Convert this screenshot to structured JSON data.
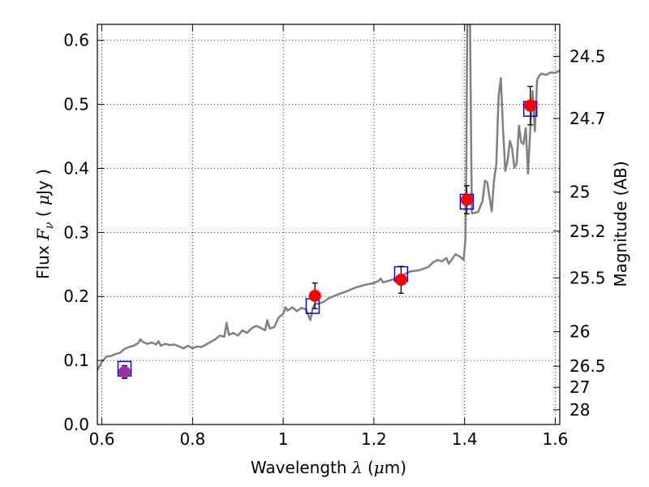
{
  "chart_data": {
    "type": "line",
    "xlabel": {
      "prefix": "Wavelength  ",
      "symbol": "λ",
      "suffix": " (",
      "unit_symbol": "μ",
      "unit_rest": "m)"
    },
    "ylabel": {
      "prefix": "Flux  ",
      "symbol": "F",
      "subscript": "ν",
      "mid": "  ( ",
      "unit_symbol": "μ",
      "unit_rest": "Jy )"
    },
    "y2label": "Magnitude (AB)",
    "xlim": [
      0.59,
      1.61
    ],
    "ylim": [
      0.0,
      0.625
    ],
    "grid": true,
    "x_ticks": [
      0.6,
      0.8,
      1.0,
      1.2,
      1.4,
      1.6
    ],
    "x_tick_labels": [
      "0.6",
      "0.8",
      "1",
      "1.2",
      "1.4",
      "1.6"
    ],
    "y_ticks": [
      0.0,
      0.1,
      0.2,
      0.3,
      0.4,
      0.5,
      0.6
    ],
    "y_tick_labels": [
      "0.0",
      "0.1",
      "0.2",
      "0.3",
      "0.4",
      "0.5",
      "0.6"
    ],
    "y2_ticks": [
      {
        "label": "24.5",
        "flux": 0.575
      },
      {
        "label": "24.7",
        "flux": 0.478
      },
      {
        "label": "25",
        "flux": 0.363
      },
      {
        "label": "25.2",
        "flux": 0.302
      },
      {
        "label": "25.5",
        "flux": 0.229
      },
      {
        "label": "26",
        "flux": 0.145
      },
      {
        "label": "26.5",
        "flux": 0.091
      },
      {
        "label": "27",
        "flux": 0.058
      },
      {
        "label": "28",
        "flux": 0.023
      }
    ],
    "series": [
      {
        "type": "line",
        "color": "#808080",
        "points": [
          [
            0.59,
            0.085
          ],
          [
            0.6,
            0.098
          ],
          [
            0.61,
            0.106
          ],
          [
            0.62,
            0.107
          ],
          [
            0.63,
            0.11
          ],
          [
            0.64,
            0.112
          ],
          [
            0.65,
            0.118
          ],
          [
            0.66,
            0.121
          ],
          [
            0.67,
            0.123
          ],
          [
            0.68,
            0.127
          ],
          [
            0.685,
            0.133
          ],
          [
            0.69,
            0.129
          ],
          [
            0.7,
            0.126
          ],
          [
            0.71,
            0.128
          ],
          [
            0.72,
            0.125
          ],
          [
            0.725,
            0.13
          ],
          [
            0.73,
            0.123
          ],
          [
            0.74,
            0.126
          ],
          [
            0.75,
            0.124
          ],
          [
            0.76,
            0.125
          ],
          [
            0.77,
            0.122
          ],
          [
            0.78,
            0.119
          ],
          [
            0.79,
            0.123
          ],
          [
            0.8,
            0.119
          ],
          [
            0.81,
            0.122
          ],
          [
            0.82,
            0.121
          ],
          [
            0.83,
            0.125
          ],
          [
            0.84,
            0.129
          ],
          [
            0.85,
            0.133
          ],
          [
            0.86,
            0.139
          ],
          [
            0.87,
            0.137
          ],
          [
            0.875,
            0.159
          ],
          [
            0.88,
            0.14
          ],
          [
            0.89,
            0.143
          ],
          [
            0.9,
            0.139
          ],
          [
            0.91,
            0.147
          ],
          [
            0.92,
            0.143
          ],
          [
            0.93,
            0.15
          ],
          [
            0.94,
            0.154
          ],
          [
            0.95,
            0.151
          ],
          [
            0.96,
            0.147
          ],
          [
            0.965,
            0.163
          ],
          [
            0.97,
            0.15
          ],
          [
            0.98,
            0.152
          ],
          [
            0.99,
            0.167
          ],
          [
            1.0,
            0.173
          ],
          [
            1.005,
            0.183
          ],
          [
            1.01,
            0.178
          ],
          [
            1.02,
            0.183
          ],
          [
            1.03,
            0.177
          ],
          [
            1.04,
            0.182
          ],
          [
            1.05,
            0.18
          ],
          [
            1.06,
            0.163
          ],
          [
            1.065,
            0.181
          ],
          [
            1.07,
            0.188
          ],
          [
            1.08,
            0.189
          ],
          [
            1.09,
            0.192
          ],
          [
            1.1,
            0.197
          ],
          [
            1.12,
            0.203
          ],
          [
            1.14,
            0.208
          ],
          [
            1.16,
            0.214
          ],
          [
            1.18,
            0.218
          ],
          [
            1.2,
            0.221
          ],
          [
            1.21,
            0.224
          ],
          [
            1.215,
            0.228
          ],
          [
            1.22,
            0.222
          ],
          [
            1.23,
            0.224
          ],
          [
            1.24,
            0.226
          ],
          [
            1.26,
            0.232
          ],
          [
            1.28,
            0.239
          ],
          [
            1.3,
            0.241
          ],
          [
            1.32,
            0.246
          ],
          [
            1.33,
            0.253
          ],
          [
            1.34,
            0.257
          ],
          [
            1.35,
            0.255
          ],
          [
            1.36,
            0.26
          ],
          [
            1.365,
            0.251
          ],
          [
            1.37,
            0.256
          ],
          [
            1.38,
            0.266
          ],
          [
            1.39,
            0.262
          ],
          [
            1.398,
            0.257
          ],
          [
            1.402,
            0.29
          ],
          [
            1.404,
            0.42
          ],
          [
            1.406,
            0.625
          ],
          [
            1.412,
            0.625
          ],
          [
            1.416,
            0.33
          ],
          [
            1.42,
            0.33
          ],
          [
            1.43,
            0.332
          ],
          [
            1.44,
            0.35
          ],
          [
            1.445,
            0.381
          ],
          [
            1.45,
            0.378
          ],
          [
            1.455,
            0.355
          ],
          [
            1.46,
            0.333
          ],
          [
            1.465,
            0.382
          ],
          [
            1.47,
            0.407
          ],
          [
            1.475,
            0.512
          ],
          [
            1.48,
            0.541
          ],
          [
            1.485,
            0.46
          ],
          [
            1.49,
            0.396
          ],
          [
            1.495,
            0.412
          ],
          [
            1.5,
            0.443
          ],
          [
            1.505,
            0.431
          ],
          [
            1.51,
            0.401
          ],
          [
            1.515,
            0.407
          ],
          [
            1.52,
            0.467
          ],
          [
            1.525,
            0.441
          ],
          [
            1.53,
            0.438
          ],
          [
            1.535,
            0.463
          ],
          [
            1.54,
            0.392
          ],
          [
            1.545,
            0.463
          ],
          [
            1.55,
            0.521
          ],
          [
            1.555,
            0.458
          ],
          [
            1.56,
            0.538
          ],
          [
            1.565,
            0.545
          ],
          [
            1.57,
            0.548
          ],
          [
            1.58,
            0.546
          ],
          [
            1.59,
            0.55
          ],
          [
            1.6,
            0.549
          ],
          [
            1.61,
            0.553
          ]
        ]
      },
      {
        "type": "scatter",
        "marker": "square",
        "color": "#0000ff",
        "points": [
          [
            0.65,
            0.087
          ],
          [
            1.065,
            0.185
          ],
          [
            1.26,
            0.235
          ],
          [
            1.405,
            0.348
          ],
          [
            1.545,
            0.493
          ]
        ]
      },
      {
        "type": "scatter",
        "marker": "circle",
        "color": "#ff0000",
        "points": [
          {
            "x": 0.65,
            "y": 0.082,
            "err": 0.01,
            "color": "#9b2fa0"
          },
          {
            "x": 1.07,
            "y": 0.201,
            "err": 0.02,
            "color": "#ff0000"
          },
          {
            "x": 1.26,
            "y": 0.226,
            "err": 0.021,
            "color": "#ff0000"
          },
          {
            "x": 1.405,
            "y": 0.351,
            "err": 0.022,
            "color": "#ff0000"
          },
          {
            "x": 1.545,
            "y": 0.498,
            "err": 0.03,
            "color": "#ff0000"
          }
        ]
      }
    ]
  }
}
